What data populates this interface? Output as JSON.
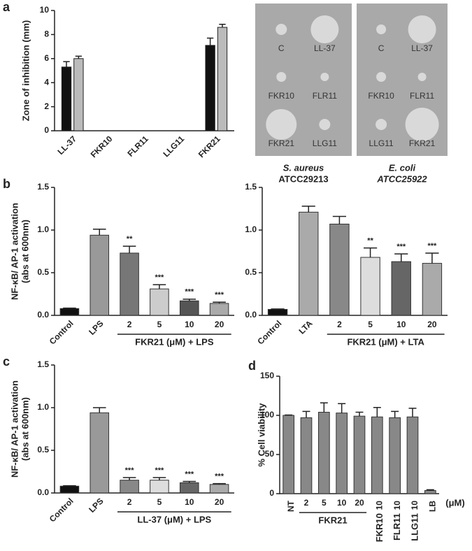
{
  "chart_data": [
    {
      "type": "grouped-bar",
      "panel": "a",
      "ylabel": [
        "Zone of inhibition (mm)"
      ],
      "categories": [
        "LL-37",
        "FKR10",
        "FLR11",
        "LLG11",
        "FKR21"
      ],
      "series": [
        {
          "color": "#111111",
          "values": [
            5.3,
            0,
            0,
            0,
            7.1
          ],
          "errors": [
            0.45,
            0,
            0,
            0,
            0.6
          ]
        },
        {
          "color": "#bbbbbb",
          "values": [
            6.0,
            0,
            0,
            0,
            8.6
          ],
          "errors": [
            0.2,
            0,
            0,
            0,
            0.25
          ]
        }
      ],
      "ylim": [
        0,
        10
      ],
      "yticks": [
        0,
        2,
        4,
        6,
        8,
        10
      ]
    },
    {
      "type": "image",
      "plates": [
        {
          "labels": [
            "C",
            "LL-37",
            "FKR10",
            "FLR11",
            "FKR21",
            "LLG11"
          ],
          "organism": "S. aureus",
          "strain": "ATCC29213"
        },
        {
          "labels": [
            "C",
            "LL-37",
            "FKR10",
            "FLR11",
            "LLG11",
            "FKR21"
          ],
          "organism": "E. coli",
          "strain": "ATCC25922"
        }
      ]
    },
    {
      "type": "bar",
      "panel": "b",
      "ylabel": [
        "NF-κB/ AP-1 activation",
        "(abs at 600nm)"
      ],
      "categories": [
        "Control",
        "LPS",
        "2",
        "5",
        "10",
        "20"
      ],
      "values": [
        0.08,
        0.94,
        0.73,
        0.31,
        0.17,
        0.14
      ],
      "errors": [
        0.005,
        0.07,
        0.08,
        0.05,
        0.02,
        0.015
      ],
      "colors": [
        "#111111",
        "#999999",
        "#777777",
        "#cccccc",
        "#555555",
        "#aaaaaa"
      ],
      "annotations": [
        {
          "category": "2",
          "label": "**"
        },
        {
          "category": "5",
          "label": "***"
        },
        {
          "category": "10",
          "label": "***"
        },
        {
          "category": "20",
          "label": "***"
        }
      ],
      "group_label": "FKR21 (μM) + LPS",
      "ylim": [
        0,
        1.5
      ],
      "yticks": [
        {
          "value": 0,
          "label": "0.0"
        },
        0.5,
        {
          "value": 1,
          "label": "1.0"
        },
        1.5
      ]
    },
    {
      "type": "bar",
      "categories": [
        "Control",
        "LTA",
        "2",
        "5",
        "10",
        "20"
      ],
      "values": [
        0.07,
        1.21,
        1.07,
        0.68,
        0.63,
        0.61
      ],
      "errors": [
        0.005,
        0.07,
        0.09,
        0.11,
        0.09,
        0.12
      ],
      "colors": [
        "#111111",
        "#aaaaaa",
        "#888888",
        "#dddddd",
        "#666666",
        "#aaaaaa"
      ],
      "annotations": [
        {
          "category": "5",
          "label": "**"
        },
        {
          "category": "10",
          "label": "***"
        },
        {
          "category": "20",
          "label": "***"
        }
      ],
      "group_label": "FKR21 (μM) + LTA",
      "ylim": [
        0,
        1.5
      ],
      "yticks": [
        {
          "value": 0,
          "label": "0.0"
        },
        0.5,
        {
          "value": 1,
          "label": "1.0"
        },
        1.5
      ]
    },
    {
      "type": "bar",
      "panel": "c",
      "ylabel": [
        "NF-κB/ AP-1 activation",
        "(abs at 600nm)"
      ],
      "categories": [
        "Control",
        "LPS",
        "2",
        "5",
        "10",
        "20"
      ],
      "values": [
        0.08,
        0.94,
        0.15,
        0.15,
        0.12,
        0.1
      ],
      "errors": [
        0.005,
        0.06,
        0.03,
        0.03,
        0.015,
        0.01
      ],
      "colors": [
        "#111111",
        "#999999",
        "#888888",
        "#dddddd",
        "#666666",
        "#aaaaaa"
      ],
      "annotations": [
        {
          "category": "2",
          "label": "***"
        },
        {
          "category": "5",
          "label": "***"
        },
        {
          "category": "10",
          "label": "***"
        },
        {
          "category": "20",
          "label": "***"
        }
      ],
      "group_label": "LL-37 (μM) + LPS",
      "ylim": [
        0,
        1.5
      ],
      "yticks": [
        {
          "value": 0,
          "label": "0.0"
        },
        0.5,
        {
          "value": 1,
          "label": "1.0"
        },
        1.5
      ]
    },
    {
      "type": "bar",
      "panel": "d",
      "ylabel": [
        "% Cell viability"
      ],
      "categories": [
        "NT",
        "2",
        "5",
        "10",
        "20",
        "10",
        "10",
        "10",
        "LB"
      ],
      "values": [
        100,
        97,
        104,
        103,
        99,
        98,
        97,
        98,
        4
      ],
      "errors": [
        0.5,
        8,
        12,
        12,
        5,
        12,
        8,
        11,
        1
      ],
      "color": "#888888",
      "group_label": "FKR21",
      "peptide_labels": [
        "FKR10",
        "FLR11",
        "LLG11"
      ],
      "unit_label": "(μM)",
      "ylim": [
        0,
        150
      ],
      "yticks": [
        0,
        50,
        100,
        150
      ]
    }
  ]
}
